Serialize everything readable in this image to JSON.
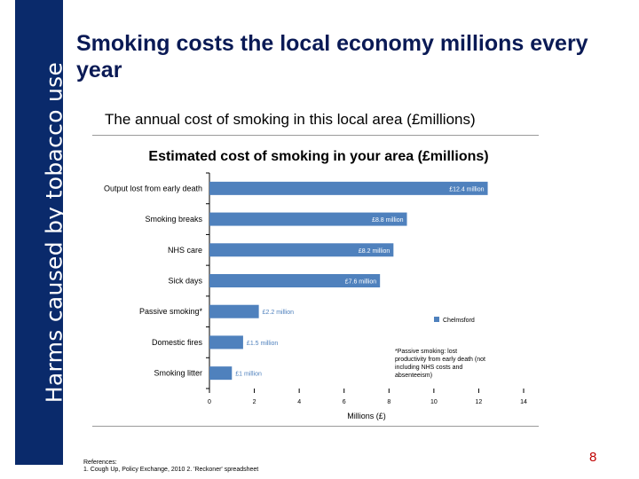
{
  "slide": {
    "sidebar_text": "Harms caused by tobacco use",
    "title": "Smoking costs the local economy millions every year",
    "subtitle": "The annual cost of smoking in this local area (£millions)",
    "references": [
      "References:",
      "1. Cough Up, Policy Exchange, 2010 2. 'Reckoner' spreadsheet"
    ],
    "page_number": "8"
  },
  "colors": {
    "sidebar": "#0a2a6b",
    "bar": "#4f81bd",
    "title": "#0a1a55",
    "page_number": "#c00000"
  },
  "chart_data": {
    "type": "bar",
    "orientation": "horizontal",
    "title": "Estimated cost of smoking in your area (£millions)",
    "xlabel": "Millions (£)",
    "ylabel": "",
    "xlim": [
      0,
      14
    ],
    "xticks": [
      0,
      2,
      4,
      6,
      8,
      10,
      12,
      14
    ],
    "grid": false,
    "categories": [
      "Output lost from early death",
      "Smoking breaks",
      "NHS care",
      "Sick days",
      "Passive smoking*",
      "Domestic fires",
      "Smoking litter"
    ],
    "series": [
      {
        "name": "Chelmsford",
        "values": [
          12.4,
          8.8,
          8.2,
          7.6,
          2.2,
          1.5,
          1.0
        ],
        "labels": [
          "£12.4 million",
          "£8.8 million",
          "£8.2 million",
          "£7.6 million",
          "£2.2 million",
          "£1.5 million",
          "£1 million"
        ]
      }
    ],
    "legend_position": "right",
    "annotation": "*Passive smoking: lost productivity from early death (not including NHS costs and absenteeism)"
  }
}
